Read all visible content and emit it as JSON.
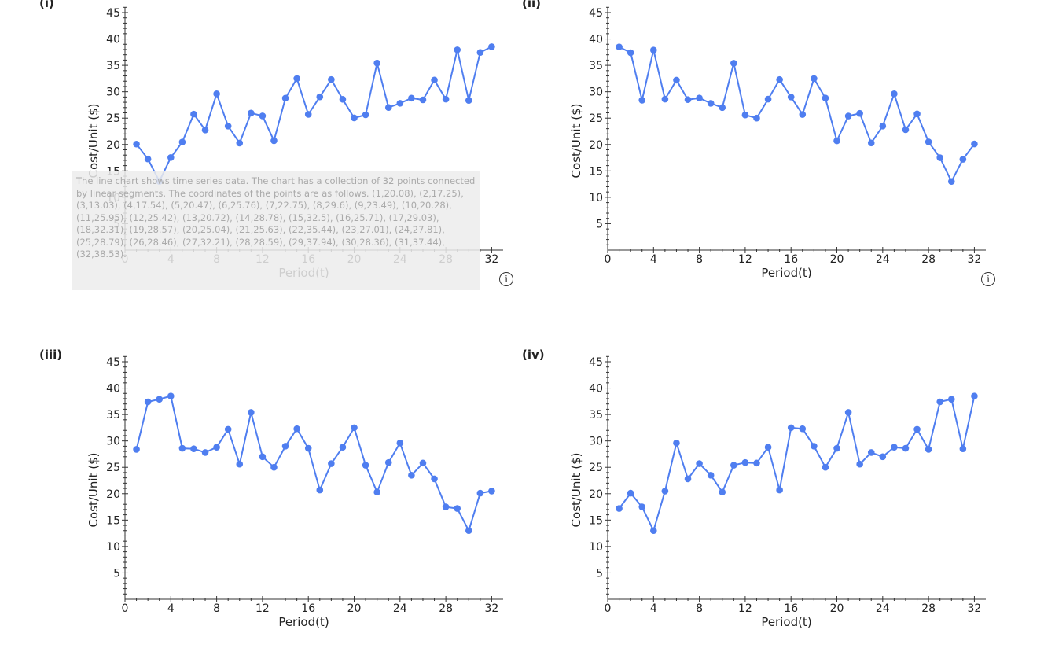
{
  "alt_text": "The line chart shows time series data. The chart has a collection of 32 points connected by linear segments. The coordinates of the points are as follows. (1,20.08), (2,17.25), (3,13.03), (4,17.54), (5,20.47), (6,25.76), (7,22.75), (8,29.6), (9,23.49), (10,20.28), (11,25.95), (12,25.42), (13,20.72), (14,28.78), (15,32.5), (16,25.71), (17,29.03), (18,32.31), (19,28.57), (20,25.04), (21,25.63), (22,35.44), (23,27.01), (24,27.81), (25,28.79), (26,28.46), (27,32.21), (28,28.59), (29,37.94), (30,28.36), (31,37.44), (32,38.53).",
  "info_glyph": "i",
  "line_color": "#4f7ef0",
  "chart_data": [
    {
      "type": "line",
      "panel_label": "(i)",
      "xlabel": "Period(t)",
      "ylabel": "Cost/Unit ($)",
      "xlim": [
        0,
        33
      ],
      "ylim": [
        0,
        46
      ],
      "xticks": [
        0,
        4,
        8,
        12,
        16,
        20,
        24,
        28,
        32
      ],
      "yticks": [
        5,
        10,
        15,
        20,
        25,
        30,
        35,
        40,
        45
      ],
      "x": [
        1,
        2,
        3,
        4,
        5,
        6,
        7,
        8,
        9,
        10,
        11,
        12,
        13,
        14,
        15,
        16,
        17,
        18,
        19,
        20,
        21,
        22,
        23,
        24,
        25,
        26,
        27,
        28,
        29,
        30,
        31,
        32
      ],
      "y": [
        20.08,
        17.25,
        13.03,
        17.54,
        20.47,
        25.76,
        22.75,
        29.6,
        23.49,
        20.28,
        25.95,
        25.42,
        20.72,
        28.78,
        32.5,
        25.71,
        29.03,
        32.31,
        28.57,
        25.04,
        25.63,
        35.44,
        27.01,
        27.81,
        28.79,
        28.46,
        32.21,
        28.59,
        37.94,
        28.36,
        37.44,
        38.53
      ]
    },
    {
      "type": "line",
      "panel_label": "(ii)",
      "xlabel": "Period(t)",
      "ylabel": "Cost/Unit ($)",
      "xlim": [
        0,
        33
      ],
      "ylim": [
        0,
        46
      ],
      "xticks": [
        0,
        4,
        8,
        12,
        16,
        20,
        24,
        28,
        32
      ],
      "yticks": [
        5,
        10,
        15,
        20,
        25,
        30,
        35,
        40,
        45
      ],
      "x": [
        1,
        2,
        3,
        4,
        5,
        6,
        7,
        8,
        9,
        10,
        11,
        12,
        13,
        14,
        15,
        16,
        17,
        18,
        19,
        20,
        21,
        22,
        23,
        24,
        25,
        26,
        27,
        28,
        29,
        30,
        31,
        32
      ],
      "y": [
        38.5,
        37.4,
        28.4,
        37.9,
        28.6,
        32.2,
        28.5,
        28.8,
        27.8,
        27.0,
        35.4,
        25.6,
        25.0,
        28.6,
        32.3,
        29.0,
        25.7,
        32.5,
        28.8,
        20.7,
        25.4,
        25.9,
        20.3,
        23.5,
        29.6,
        22.8,
        25.8,
        20.5,
        17.5,
        13.0,
        17.2,
        20.1
      ]
    },
    {
      "type": "line",
      "panel_label": "(iii)",
      "xlabel": "Period(t)",
      "ylabel": "Cost/Unit ($)",
      "xlim": [
        0,
        33
      ],
      "ylim": [
        0,
        46
      ],
      "xticks": [
        0,
        4,
        8,
        12,
        16,
        20,
        24,
        28,
        32
      ],
      "yticks": [
        5,
        10,
        15,
        20,
        25,
        30,
        35,
        40,
        45
      ],
      "x": [
        1,
        2,
        3,
        4,
        5,
        6,
        7,
        8,
        9,
        10,
        11,
        12,
        13,
        14,
        15,
        16,
        17,
        18,
        19,
        20,
        21,
        22,
        23,
        24,
        25,
        26,
        27,
        28,
        29,
        30,
        31,
        32
      ],
      "y": [
        28.4,
        37.4,
        37.9,
        38.5,
        28.6,
        28.5,
        27.8,
        28.8,
        32.2,
        25.6,
        35.4,
        27.0,
        25.0,
        29.0,
        32.3,
        28.6,
        20.7,
        25.7,
        28.8,
        32.5,
        25.4,
        20.3,
        25.9,
        29.6,
        23.5,
        25.8,
        22.8,
        17.5,
        17.2,
        13.0,
        20.1,
        20.5
      ]
    },
    {
      "type": "line",
      "panel_label": "(iv)",
      "xlabel": "Period(t)",
      "ylabel": "Cost/Unit ($)",
      "xlim": [
        0,
        33
      ],
      "ylim": [
        0,
        46
      ],
      "xticks": [
        0,
        4,
        8,
        12,
        16,
        20,
        24,
        28,
        32
      ],
      "yticks": [
        5,
        10,
        15,
        20,
        25,
        30,
        35,
        40,
        45
      ],
      "x": [
        1,
        2,
        3,
        4,
        5,
        6,
        7,
        8,
        9,
        10,
        11,
        12,
        13,
        14,
        15,
        16,
        17,
        18,
        19,
        20,
        21,
        22,
        23,
        24,
        25,
        26,
        27,
        28,
        29,
        30,
        31,
        32
      ],
      "y": [
        17.2,
        20.1,
        17.5,
        13.0,
        20.5,
        29.6,
        22.8,
        25.7,
        23.5,
        20.3,
        25.4,
        25.9,
        25.8,
        28.8,
        20.7,
        32.5,
        32.3,
        29.0,
        25.0,
        28.6,
        35.4,
        25.6,
        27.8,
        27.0,
        28.8,
        28.6,
        32.2,
        28.4,
        37.4,
        37.9,
        28.5,
        38.5
      ]
    }
  ]
}
